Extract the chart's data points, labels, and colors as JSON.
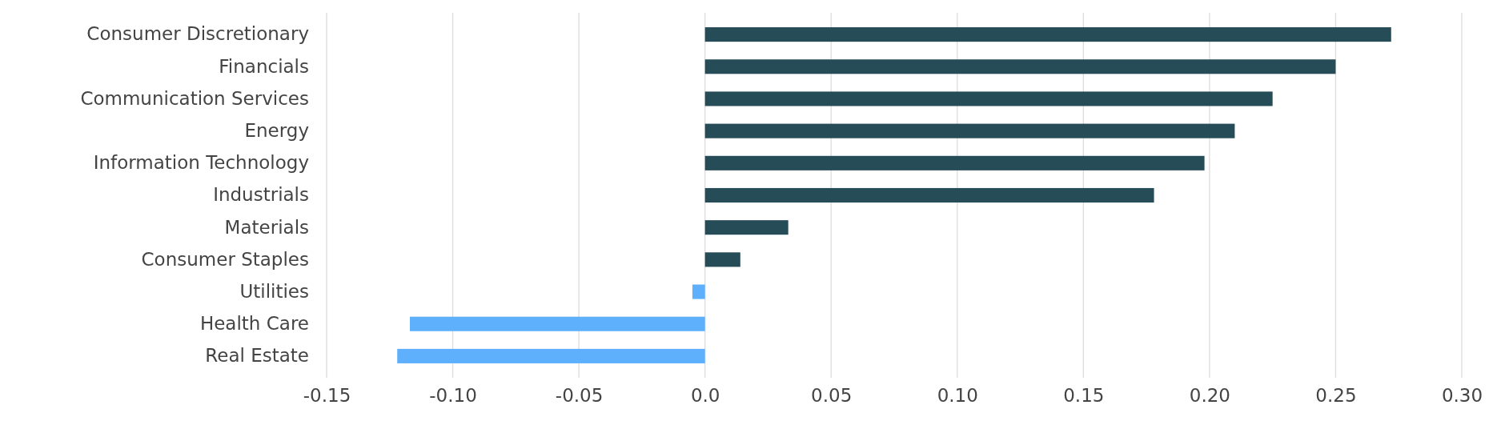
{
  "chart_data": {
    "type": "bar",
    "orientation": "horizontal",
    "categories": [
      "Consumer Discretionary",
      "Financials",
      "Communication Services",
      "Energy",
      "Information Technology",
      "Industrials",
      "Materials",
      "Consumer Staples",
      "Utilities",
      "Health Care",
      "Real Estate"
    ],
    "values": [
      0.272,
      0.25,
      0.225,
      0.21,
      0.198,
      0.178,
      0.033,
      0.014,
      -0.005,
      -0.117,
      -0.122
    ],
    "colors": [
      "#264c57",
      "#264c57",
      "#264c57",
      "#264c57",
      "#264c57",
      "#264c57",
      "#264c57",
      "#264c57",
      "#5eb0fc",
      "#5eb0fc",
      "#5eb0fc"
    ],
    "xlim": [
      -0.15,
      0.3
    ],
    "xticks": [
      {
        "value": -0.15,
        "label": "-0.15"
      },
      {
        "value": -0.1,
        "label": "-0.10"
      },
      {
        "value": -0.05,
        "label": "-0.05"
      },
      {
        "value": 0,
        "label": "0.0"
      },
      {
        "value": 0.05,
        "label": "0.05"
      },
      {
        "value": 0.1,
        "label": "0.10"
      },
      {
        "value": 0.15,
        "label": "0.15"
      },
      {
        "value": 0.2,
        "label": "0.20"
      },
      {
        "value": 0.25,
        "label": "0.25"
      },
      {
        "value": 0.3,
        "label": "0.30"
      }
    ],
    "grid": "x"
  }
}
